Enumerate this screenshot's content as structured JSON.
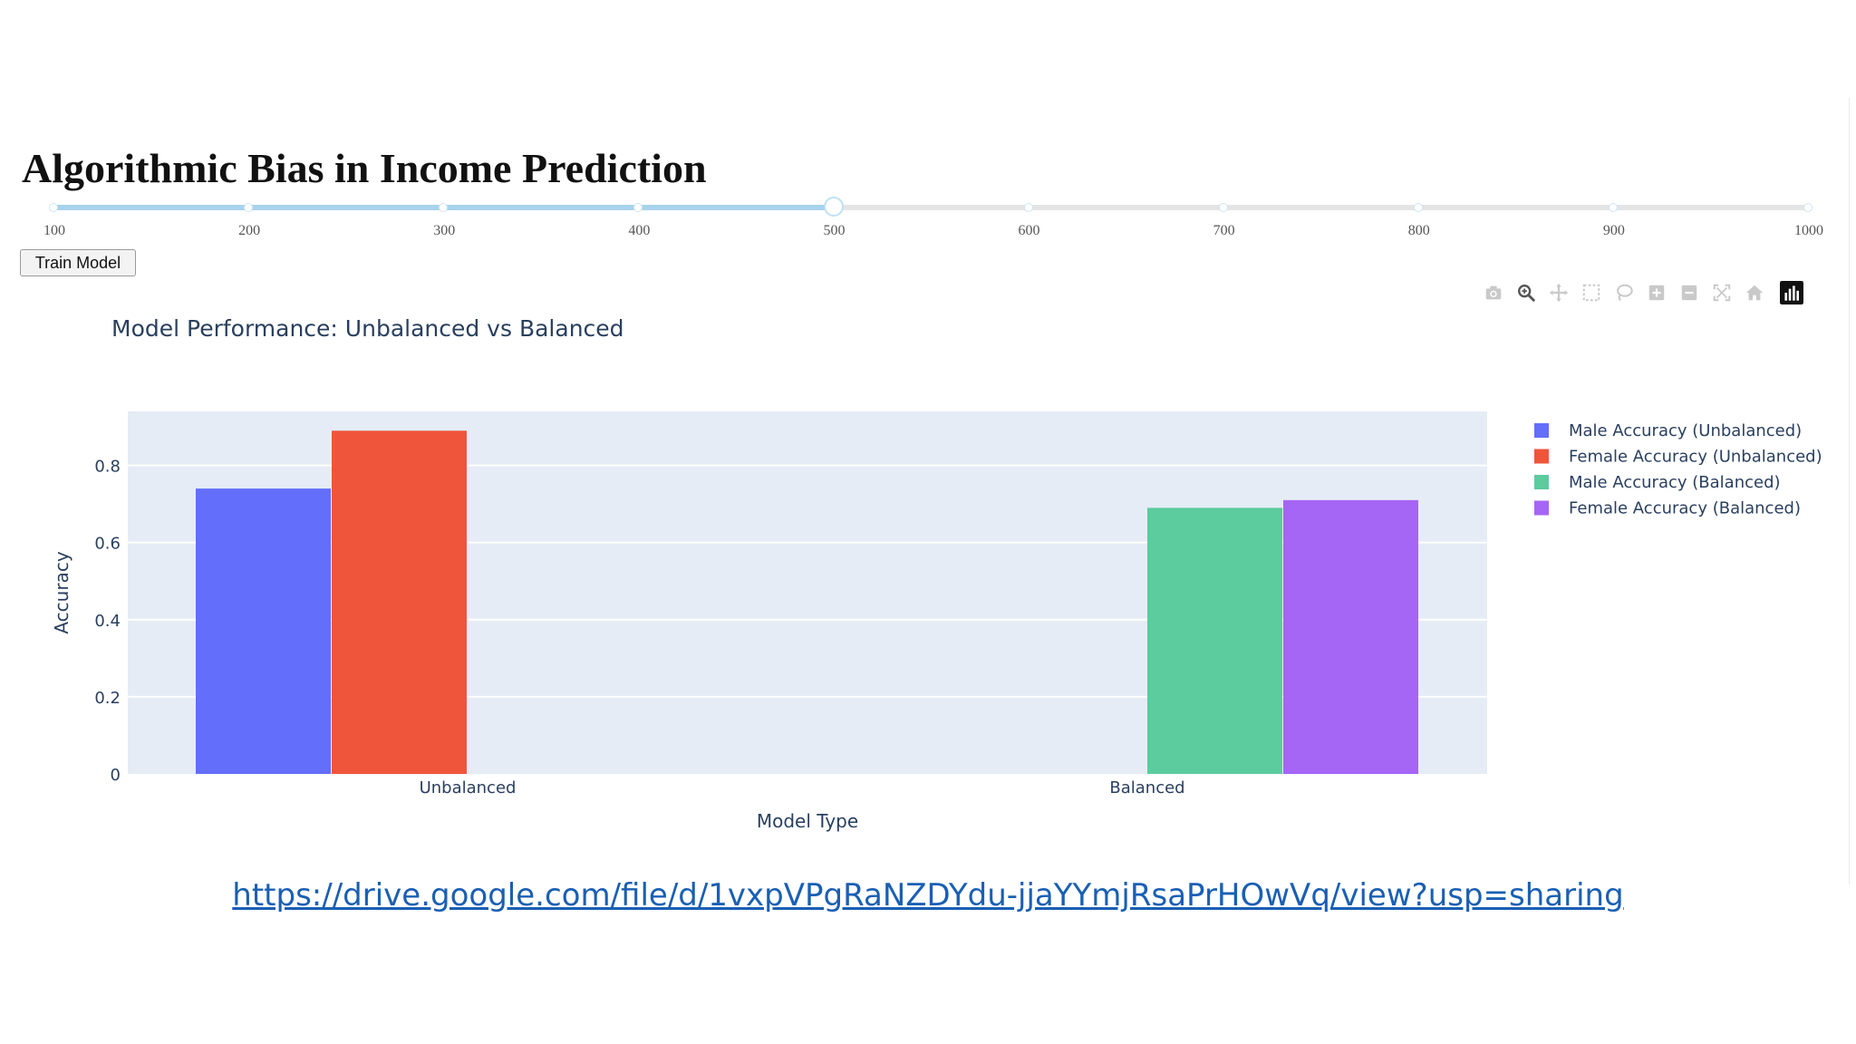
{
  "page": {
    "title": "Algorithmic Bias in Income Prediction",
    "link_text": "https://drive.google.com/file/d/1vxpVPgRaNZDYdu-jjaYYmjRsaPrHOwVq/view?usp=sharing"
  },
  "slider": {
    "labels": [
      "100",
      "200",
      "300",
      "400",
      "500",
      "600",
      "700",
      "800",
      "900",
      "1000"
    ],
    "min": 100,
    "max": 1000,
    "value": 500,
    "fill_color": "#a7d3ec",
    "track_color": "#e4e4e4"
  },
  "controls": {
    "train_label": "Train Model"
  },
  "modebar": {
    "icons": [
      "camera-icon",
      "zoom-icon",
      "pan-icon",
      "box-select-icon",
      "lasso-select-icon",
      "zoom-in-icon",
      "zoom-out-icon",
      "autoscale-icon",
      "reset-axes-icon",
      "plotly-logo-icon"
    ]
  },
  "chart_data": {
    "type": "bar",
    "title": "Model Performance: Unbalanced vs Balanced",
    "xlabel": "Model Type",
    "ylabel": "Accuracy",
    "categories": [
      "Unbalanced",
      "Balanced"
    ],
    "series": [
      {
        "name": "Male Accuracy (Unbalanced)",
        "color": "#636efa",
        "values": [
          0.74,
          null
        ]
      },
      {
        "name": "Female Accuracy (Unbalanced)",
        "color": "#ef553b",
        "values": [
          0.89,
          null
        ]
      },
      {
        "name": "Male Accuracy (Balanced)",
        "color": "#5ccb9d",
        "values": [
          null,
          0.69
        ]
      },
      {
        "name": "Female Accuracy (Balanced)",
        "color": "#a565f5",
        "values": [
          null,
          0.71
        ]
      }
    ],
    "ylim": [
      0,
      0.94
    ],
    "yticks": [
      0,
      0.2,
      0.4,
      0.6,
      0.8
    ],
    "ytick_labels": [
      "0",
      "0.2",
      "0.4",
      "0.6",
      "0.8"
    ],
    "grid": true,
    "legend": "right",
    "plot_bg": "#e5ecf6"
  }
}
